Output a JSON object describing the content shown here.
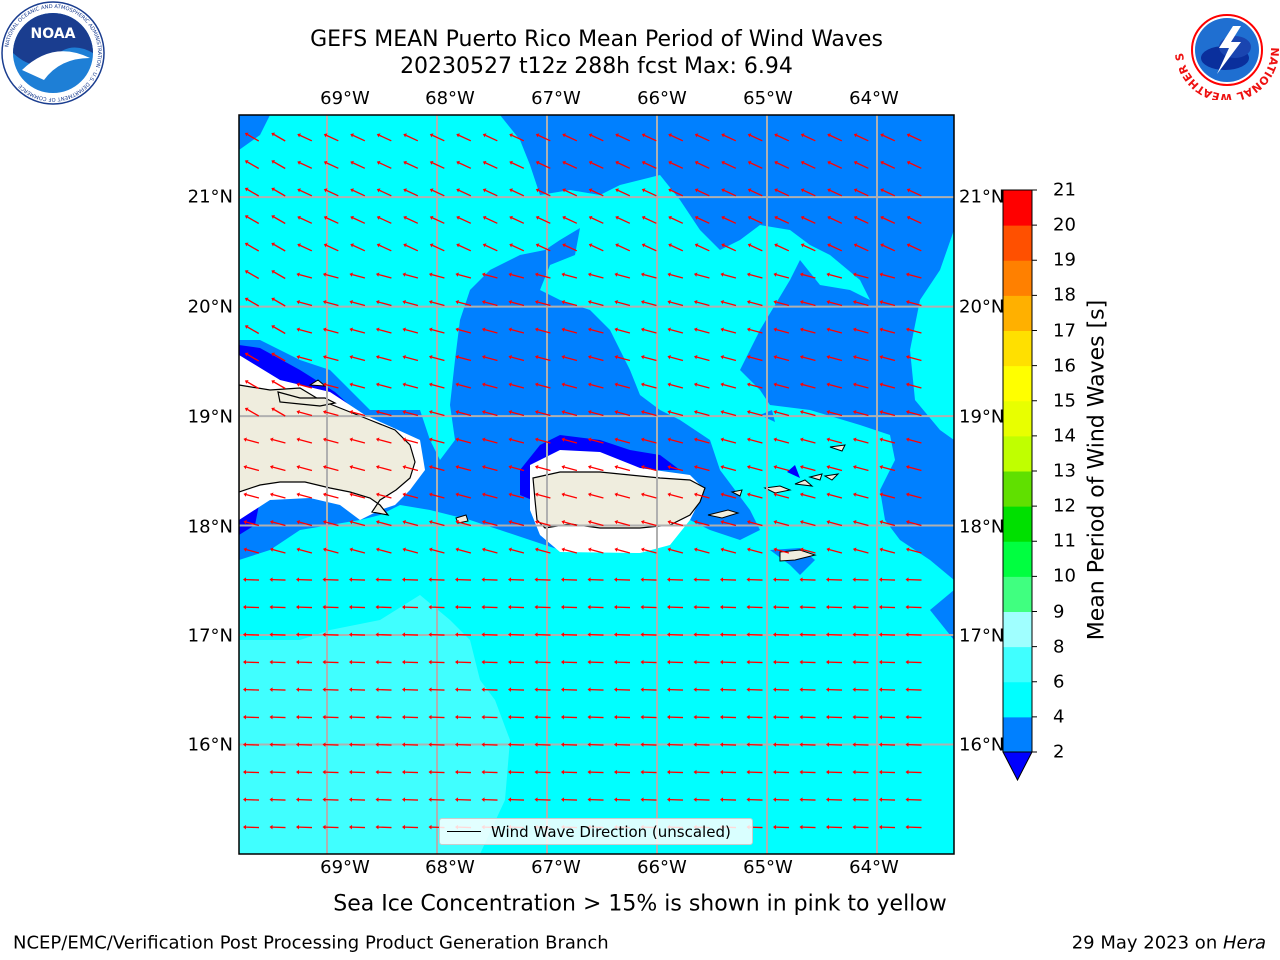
{
  "header": {
    "title_line1": "GEFS MEAN Puerto Rico Mean Period of Wind Waves",
    "title_line2": "20230527 t12z 288h fcst   Max: 6.94"
  },
  "logos": {
    "left": "NOAA",
    "left_ring_text": "NATIONAL OCEANIC AND ATMOSPHERIC ADMINISTRATION · U.S. DEPARTMENT OF COMMERCE",
    "right_ring_text": "NATIONAL WEATHER SERVICE"
  },
  "map": {
    "lon_ticks": [
      "69°W",
      "68°W",
      "67°W",
      "66°W",
      "65°W",
      "64°W"
    ],
    "lat_ticks": [
      "21°N",
      "20°N",
      "19°N",
      "18°N",
      "17°N",
      "16°N"
    ],
    "lon_range": [
      -69.8,
      -63.3
    ],
    "lat_range": [
      15.0,
      21.75
    ],
    "land_color": "#efedde",
    "arrow_color": "#ff0000"
  },
  "colorbar": {
    "label": "Mean Period of Wind Waves [s]",
    "ticks": [
      "2",
      "4",
      "6",
      "8",
      "9",
      "10",
      "11",
      "12",
      "13",
      "14",
      "15",
      "16",
      "17",
      "18",
      "19",
      "20",
      "21"
    ],
    "colors": [
      "#0080ff",
      "#00ffff",
      "#40ffff",
      "#a0ffff",
      "#40ff80",
      "#00ff40",
      "#00e000",
      "#60e000",
      "#c0ff00",
      "#e8ff00",
      "#ffff00",
      "#ffe000",
      "#ffb000",
      "#ff8000",
      "#ff5000",
      "#ff2000",
      "#ff0000"
    ],
    "under_color": "#0000ff"
  },
  "legend": {
    "label": "Wind Wave Direction (unscaled)"
  },
  "notes": {
    "sea_ice": "Sea Ice Concentration > 15% is shown in pink to yellow",
    "branch": "NCEP/EMC/Verification Post Processing Product Generation Branch",
    "date": "29 May 2023 on ",
    "machine": "Hera"
  }
}
